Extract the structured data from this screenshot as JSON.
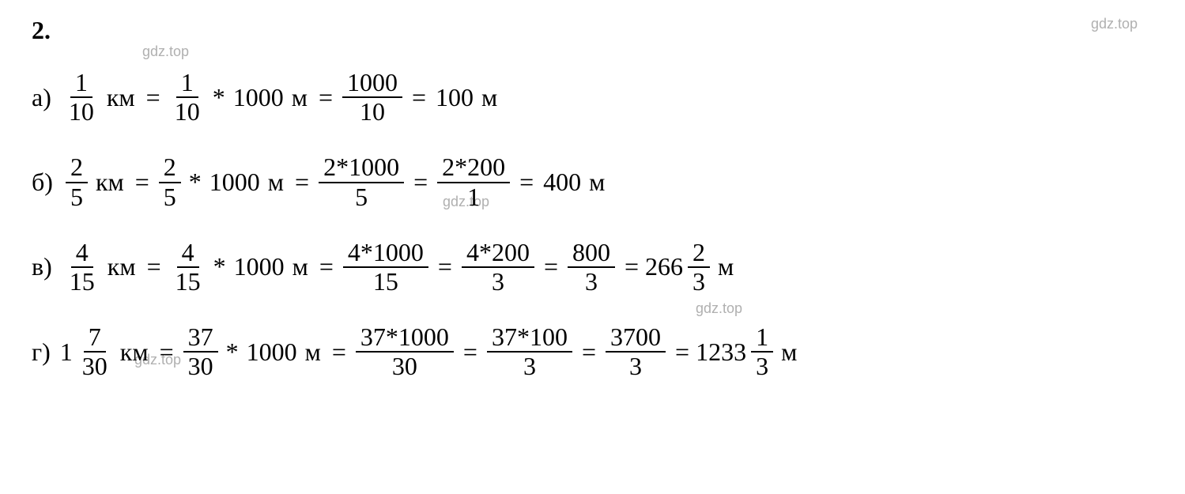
{
  "problem_number": "2.",
  "watermarks": {
    "wm1": "gdz.top",
    "wm2": "gdz.top",
    "wm3": "gdz.top",
    "wm4": "gdz.top",
    "wm5": "gdz.top"
  },
  "colors": {
    "text": "#000000",
    "watermark": "#b0b0b0",
    "background": "#ffffff"
  },
  "typography": {
    "main_fontsize": 32,
    "watermark_fontsize": 18,
    "main_font": "Times New Roman",
    "watermark_font": "Arial"
  },
  "lines": {
    "a": {
      "label": "а)",
      "f1_num": "1",
      "f1_den": "10",
      "unit1": "км",
      "eq1": "=",
      "f2_num": "1",
      "f2_den": "10",
      "op1": "*",
      "val1": "1000",
      "unit2": "м",
      "eq2": "=",
      "f3_num": "1000",
      "f3_den": "10",
      "eq3": "=",
      "result": "100",
      "unit3": "м"
    },
    "b": {
      "label": "б)",
      "f1_num": "2",
      "f1_den": "5",
      "unit1": "км",
      "eq1": "=",
      "f2_num": "2",
      "f2_den": "5",
      "op1": "*",
      "val1": "1000",
      "unit2": "м",
      "eq2": "=",
      "f3_num": "2*1000",
      "f3_den": "5",
      "eq3": "=",
      "f4_num": "2*200",
      "f4_den": "1",
      "eq4": "=",
      "result": "400",
      "unit3": "м"
    },
    "v": {
      "label": "в)",
      "f1_num": "4",
      "f1_den": "15",
      "unit1": "км",
      "eq1": "=",
      "f2_num": "4",
      "f2_den": "15",
      "op1": "*",
      "val1": "1000",
      "unit2": "м",
      "eq2": "=",
      "f3_num": "4*1000",
      "f3_den": "15",
      "eq3": "=",
      "f4_num": "4*200",
      "f4_den": "3",
      "eq4": "=",
      "f5_num": "800",
      "f5_den": "3",
      "eq5": "=",
      "whole": "266",
      "rf_num": "2",
      "rf_den": "3",
      "unit3": "м"
    },
    "g": {
      "label": "г)",
      "w1": "1",
      "f1_num": "7",
      "f1_den": "30",
      "unit1": "км",
      "eq1": "=",
      "f2_num": "37",
      "f2_den": "30",
      "op1": "*",
      "val1": "1000",
      "unit2": "м",
      "eq2": "=",
      "f3_num": "37*1000",
      "f3_den": "30",
      "eq3": "=",
      "f4_num": "37*100",
      "f4_den": "3",
      "eq4": "=",
      "f5_num": "3700",
      "f5_den": "3",
      "eq5": "=",
      "whole": "1233",
      "rf_num": "1",
      "rf_den": "3",
      "unit3": "м"
    }
  }
}
